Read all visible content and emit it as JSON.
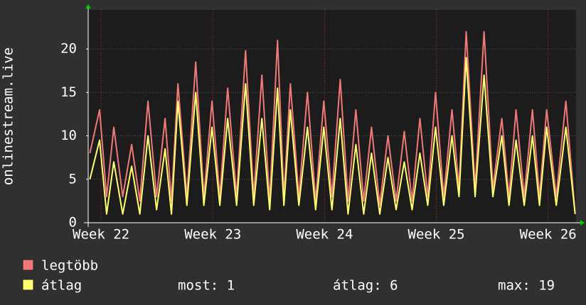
{
  "chart_data": {
    "type": "line",
    "y_label": "onlinestream.live",
    "x": [
      21.9,
      21.987,
      22.05,
      22.114,
      22.194,
      22.274,
      22.347,
      22.42,
      22.497,
      22.573,
      22.63,
      22.688,
      22.768,
      22.847,
      22.92,
      22.993,
      23.063,
      23.133,
      23.213,
      23.293,
      23.366,
      23.439,
      23.509,
      23.579,
      23.636,
      23.694,
      23.77,
      23.847,
      23.92,
      23.993,
      24.066,
      24.14,
      24.21,
      24.28,
      24.35,
      24.42,
      24.494,
      24.567,
      24.64,
      24.713,
      24.783,
      24.853,
      24.923,
      24.993,
      25.066,
      25.14,
      25.203,
      25.267,
      25.347,
      25.427,
      25.506,
      25.586,
      25.65,
      25.713,
      25.786,
      25.86,
      25.923,
      25.987,
      26.073,
      26.159,
      26.242
    ],
    "series": [
      {
        "name": "legtöbb",
        "color": "#f07878",
        "values": [
          8,
          13,
          3,
          11,
          3,
          9,
          2.5,
          14,
          3,
          12,
          2.5,
          16,
          3,
          18.5,
          3,
          14,
          3,
          15.5,
          3,
          19.8,
          3,
          17,
          2.5,
          21,
          3,
          16,
          3,
          15,
          2.5,
          14,
          3,
          16.5,
          2.5,
          13,
          2.5,
          11,
          2,
          10,
          2.5,
          10.5,
          2.5,
          12,
          3,
          15,
          3,
          13,
          4,
          22,
          4,
          22,
          4,
          12,
          3,
          13,
          3,
          13,
          3,
          13,
          3,
          14,
          1
        ]
      },
      {
        "name": "átlag",
        "color": "#ffff70",
        "values": [
          5,
          9.5,
          1,
          7,
          1,
          6.5,
          1,
          10,
          1.5,
          8.5,
          1,
          14,
          2,
          15,
          2,
          11,
          2,
          12,
          2,
          16,
          2,
          12,
          1.5,
          15.5,
          2,
          13,
          2,
          11,
          1.5,
          11,
          1.5,
          12,
          1,
          9,
          1,
          8,
          1,
          7.5,
          1.5,
          7,
          1.5,
          8,
          2,
          11,
          2,
          10,
          3,
          19,
          3,
          17,
          3,
          10,
          2,
          9.5,
          2,
          10,
          2,
          11,
          2,
          11,
          1
        ]
      }
    ],
    "stats": [
      "most: 1",
      "átlag: 6",
      "max: 19"
    ],
    "xlim": [
      21.885,
      26.25
    ],
    "xticks": [
      {
        "value": 22,
        "label": "Week 22"
      },
      {
        "value": 23,
        "label": "Week 23"
      },
      {
        "value": 24,
        "label": "Week 24"
      },
      {
        "value": 25,
        "label": "Week 25"
      },
      {
        "value": 26,
        "label": "Week 26"
      }
    ],
    "ylim": [
      0,
      24.5
    ],
    "yticks": [
      0,
      5,
      10,
      15,
      20
    ],
    "grid": true
  }
}
